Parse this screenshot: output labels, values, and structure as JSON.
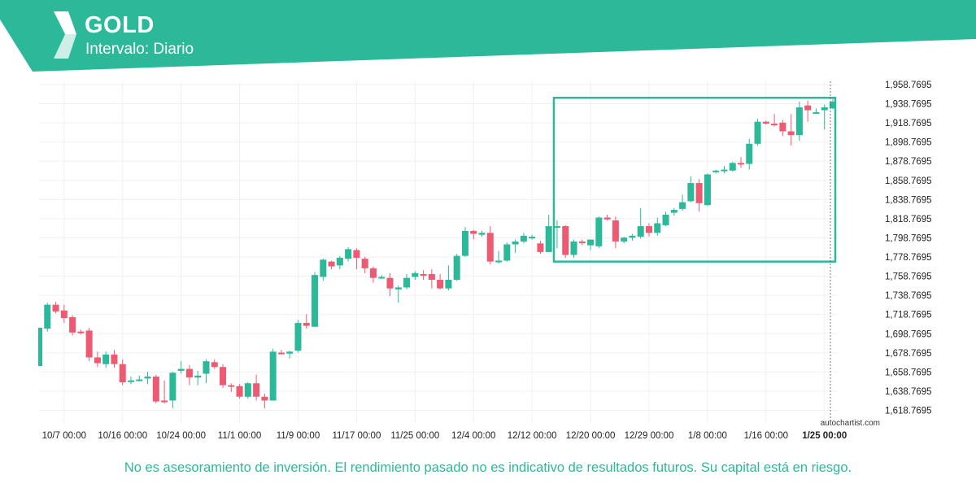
{
  "header": {
    "instrument": "GOLD",
    "interval": "Intervalo: Diario",
    "brand_color": "#2bb99a"
  },
  "footer": {
    "disclaimer": "No es asesoramiento de inversión. El rendimiento pasado no es indicativo de resultados futuros. Su capital está en riesgo.",
    "watermark": "autochartist.com"
  },
  "chart_data": {
    "type": "candlestick",
    "title": "GOLD",
    "subtitle": "Intervalo: Diario",
    "up_color": "#2bb99a",
    "down_color": "#ee5a72",
    "ylim": [
      1605,
      1963
    ],
    "y_ticks": [
      "1,618.7695",
      "1,638.7695",
      "1,658.7695",
      "1,678.7695",
      "1,698.7695",
      "1,718.7695",
      "1,738.7695",
      "1,758.7695",
      "1,778.7695",
      "1,798.7695",
      "1,818.7695",
      "1,838.7695",
      "1,858.7695",
      "1,878.7695",
      "1,898.7695",
      "1,918.7695",
      "1,938.7695",
      "1,958.7695"
    ],
    "x_ticks": [
      {
        "label": "10/7 00:00",
        "index": 3
      },
      {
        "label": "10/16 00:00",
        "index": 10
      },
      {
        "label": "10/24 00:00",
        "index": 17
      },
      {
        "label": "11/1 00:00",
        "index": 24
      },
      {
        "label": "11/9 00:00",
        "index": 31
      },
      {
        "label": "11/17 00:00",
        "index": 38
      },
      {
        "label": "11/25 00:00",
        "index": 45
      },
      {
        "label": "12/4 00:00",
        "index": 52
      },
      {
        "label": "12/12 00:00",
        "index": 59
      },
      {
        "label": "12/20 00:00",
        "index": 66
      },
      {
        "label": "12/29 00:00",
        "index": 73
      },
      {
        "label": "1/8 00:00",
        "index": 80
      },
      {
        "label": "1/16 00:00",
        "index": 87
      },
      {
        "label": "1/25 00:00",
        "index": 94,
        "bold": true
      }
    ],
    "candles": [
      {
        "o": 1665,
        "h": 1705,
        "l": 1665,
        "c": 1705
      },
      {
        "o": 1704,
        "h": 1731,
        "l": 1701,
        "c": 1729
      },
      {
        "o": 1729,
        "h": 1732,
        "l": 1720,
        "c": 1722
      },
      {
        "o": 1723,
        "h": 1729,
        "l": 1710,
        "c": 1715
      },
      {
        "o": 1716,
        "h": 1718,
        "l": 1697,
        "c": 1700
      },
      {
        "o": 1701,
        "h": 1703,
        "l": 1698,
        "c": 1700
      },
      {
        "o": 1702,
        "h": 1705,
        "l": 1670,
        "c": 1674
      },
      {
        "o": 1674,
        "h": 1680,
        "l": 1664,
        "c": 1668
      },
      {
        "o": 1667,
        "h": 1680,
        "l": 1663,
        "c": 1677
      },
      {
        "o": 1677,
        "h": 1682,
        "l": 1663,
        "c": 1667
      },
      {
        "o": 1667,
        "h": 1672,
        "l": 1645,
        "c": 1648
      },
      {
        "o": 1649,
        "h": 1654,
        "l": 1646,
        "c": 1650
      },
      {
        "o": 1650,
        "h": 1655,
        "l": 1649,
        "c": 1651
      },
      {
        "o": 1652,
        "h": 1659,
        "l": 1646,
        "c": 1654
      },
      {
        "o": 1654,
        "h": 1656,
        "l": 1626,
        "c": 1628
      },
      {
        "o": 1629,
        "h": 1650,
        "l": 1626,
        "c": 1628
      },
      {
        "o": 1629,
        "h": 1659,
        "l": 1621,
        "c": 1658
      },
      {
        "o": 1660,
        "h": 1670,
        "l": 1657,
        "c": 1662
      },
      {
        "o": 1662,
        "h": 1666,
        "l": 1645,
        "c": 1653
      },
      {
        "o": 1653,
        "h": 1660,
        "l": 1645,
        "c": 1655
      },
      {
        "o": 1657,
        "h": 1672,
        "l": 1647,
        "c": 1670
      },
      {
        "o": 1669,
        "h": 1672,
        "l": 1662,
        "c": 1664
      },
      {
        "o": 1664,
        "h": 1667,
        "l": 1642,
        "c": 1645
      },
      {
        "o": 1645,
        "h": 1647,
        "l": 1638,
        "c": 1644
      },
      {
        "o": 1644,
        "h": 1646,
        "l": 1631,
        "c": 1633
      },
      {
        "o": 1633,
        "h": 1648,
        "l": 1631,
        "c": 1647
      },
      {
        "o": 1647,
        "h": 1656,
        "l": 1629,
        "c": 1633
      },
      {
        "o": 1633,
        "h": 1636,
        "l": 1621,
        "c": 1629
      },
      {
        "o": 1629,
        "h": 1683,
        "l": 1629,
        "c": 1680
      },
      {
        "o": 1679,
        "h": 1682,
        "l": 1677,
        "c": 1678
      },
      {
        "o": 1678,
        "h": 1681,
        "l": 1673,
        "c": 1680
      },
      {
        "o": 1681,
        "h": 1713,
        "l": 1679,
        "c": 1710
      },
      {
        "o": 1710,
        "h": 1719,
        "l": 1704,
        "c": 1707
      },
      {
        "o": 1706,
        "h": 1763,
        "l": 1706,
        "c": 1760
      },
      {
        "o": 1758,
        "h": 1777,
        "l": 1754,
        "c": 1776
      },
      {
        "o": 1774,
        "h": 1775,
        "l": 1766,
        "c": 1769
      },
      {
        "o": 1770,
        "h": 1780,
        "l": 1766,
        "c": 1778
      },
      {
        "o": 1777,
        "h": 1789,
        "l": 1774,
        "c": 1787
      },
      {
        "o": 1786,
        "h": 1788,
        "l": 1766,
        "c": 1778
      },
      {
        "o": 1777,
        "h": 1779,
        "l": 1762,
        "c": 1767
      },
      {
        "o": 1767,
        "h": 1769,
        "l": 1752,
        "c": 1757
      },
      {
        "o": 1757,
        "h": 1760,
        "l": 1756,
        "c": 1758
      },
      {
        "o": 1757,
        "h": 1762,
        "l": 1738,
        "c": 1746
      },
      {
        "o": 1745,
        "h": 1749,
        "l": 1731,
        "c": 1747
      },
      {
        "o": 1747,
        "h": 1761,
        "l": 1745,
        "c": 1757
      },
      {
        "o": 1758,
        "h": 1764,
        "l": 1755,
        "c": 1762
      },
      {
        "o": 1761,
        "h": 1765,
        "l": 1755,
        "c": 1760
      },
      {
        "o": 1761,
        "h": 1766,
        "l": 1746,
        "c": 1755
      },
      {
        "o": 1755,
        "h": 1761,
        "l": 1745,
        "c": 1746
      },
      {
        "o": 1746,
        "h": 1770,
        "l": 1744,
        "c": 1755
      },
      {
        "o": 1755,
        "h": 1782,
        "l": 1754,
        "c": 1780
      },
      {
        "o": 1780,
        "h": 1810,
        "l": 1779,
        "c": 1806
      },
      {
        "o": 1806,
        "h": 1807,
        "l": 1797,
        "c": 1803
      },
      {
        "o": 1802,
        "h": 1806,
        "l": 1800,
        "c": 1804
      },
      {
        "o": 1804,
        "h": 1811,
        "l": 1771,
        "c": 1774
      },
      {
        "o": 1775,
        "h": 1785,
        "l": 1772,
        "c": 1775
      },
      {
        "o": 1775,
        "h": 1794,
        "l": 1774,
        "c": 1792
      },
      {
        "o": 1792,
        "h": 1797,
        "l": 1783,
        "c": 1795
      },
      {
        "o": 1795,
        "h": 1804,
        "l": 1793,
        "c": 1801
      },
      {
        "o": 1800,
        "h": 1802,
        "l": 1797,
        "c": 1800
      },
      {
        "o": 1793,
        "h": 1796,
        "l": 1782,
        "c": 1784
      },
      {
        "o": 1784,
        "h": 1823,
        "l": 1784,
        "c": 1811
      },
      {
        "o": 1811,
        "h": 1817,
        "l": 1788,
        "c": 1811
      },
      {
        "o": 1811,
        "h": 1812,
        "l": 1778,
        "c": 1781
      },
      {
        "o": 1781,
        "h": 1797,
        "l": 1778,
        "c": 1795
      },
      {
        "o": 1795,
        "h": 1797,
        "l": 1791,
        "c": 1794
      },
      {
        "o": 1791,
        "h": 1797,
        "l": 1786,
        "c": 1797
      },
      {
        "o": 1790,
        "h": 1821,
        "l": 1788,
        "c": 1820
      },
      {
        "o": 1820,
        "h": 1823,
        "l": 1817,
        "c": 1818
      },
      {
        "o": 1817,
        "h": 1821,
        "l": 1788,
        "c": 1795
      },
      {
        "o": 1795,
        "h": 1800,
        "l": 1793,
        "c": 1799
      },
      {
        "o": 1799,
        "h": 1803,
        "l": 1796,
        "c": 1801
      },
      {
        "o": 1800,
        "h": 1830,
        "l": 1798,
        "c": 1811
      },
      {
        "o": 1811,
        "h": 1814,
        "l": 1800,
        "c": 1804
      },
      {
        "o": 1804,
        "h": 1820,
        "l": 1801,
        "c": 1814
      },
      {
        "o": 1812,
        "h": 1826,
        "l": 1811,
        "c": 1823
      },
      {
        "o": 1825,
        "h": 1830,
        "l": 1822,
        "c": 1828
      },
      {
        "o": 1829,
        "h": 1844,
        "l": 1827,
        "c": 1836
      },
      {
        "o": 1837,
        "h": 1863,
        "l": 1836,
        "c": 1856
      },
      {
        "o": 1856,
        "h": 1860,
        "l": 1826,
        "c": 1835
      },
      {
        "o": 1833,
        "h": 1866,
        "l": 1832,
        "c": 1865
      },
      {
        "o": 1868,
        "h": 1870,
        "l": 1866,
        "c": 1869
      },
      {
        "o": 1869,
        "h": 1874,
        "l": 1866,
        "c": 1870
      },
      {
        "o": 1869,
        "h": 1878,
        "l": 1868,
        "c": 1877
      },
      {
        "o": 1877,
        "h": 1883,
        "l": 1872,
        "c": 1876
      },
      {
        "o": 1876,
        "h": 1902,
        "l": 1870,
        "c": 1897
      },
      {
        "o": 1897,
        "h": 1923,
        "l": 1895,
        "c": 1920
      },
      {
        "o": 1920,
        "h": 1921,
        "l": 1917,
        "c": 1918
      },
      {
        "o": 1918,
        "h": 1928,
        "l": 1915,
        "c": 1917
      },
      {
        "o": 1919,
        "h": 1922,
        "l": 1905,
        "c": 1910
      },
      {
        "o": 1910,
        "h": 1928,
        "l": 1895,
        "c": 1906
      },
      {
        "o": 1906,
        "h": 1941,
        "l": 1900,
        "c": 1935
      },
      {
        "o": 1937,
        "h": 1942,
        "l": 1920,
        "c": 1932
      },
      {
        "o": 1930,
        "h": 1934,
        "l": 1928,
        "c": 1930
      },
      {
        "o": 1932,
        "h": 1938,
        "l": 1912,
        "c": 1935
      },
      {
        "o": 1934,
        "h": 1945,
        "l": 1933,
        "c": 1941
      }
    ],
    "pattern_box": {
      "start_index": 62,
      "end_index": 95,
      "top": 1945,
      "bottom": 1774
    },
    "current_time_index": 95,
    "grid": true,
    "axis_side": "right"
  }
}
